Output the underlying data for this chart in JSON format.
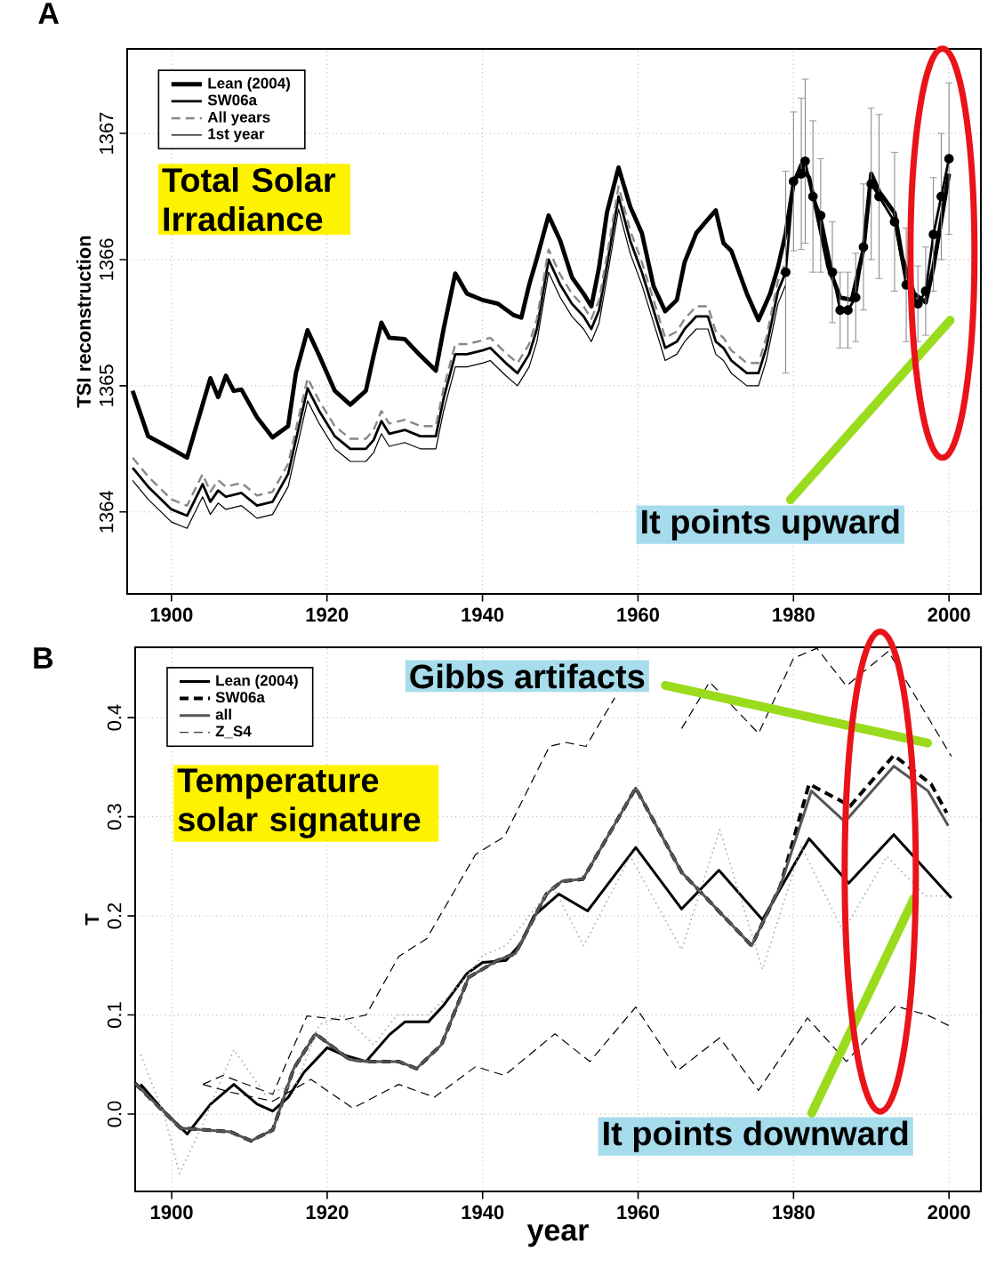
{
  "chart_data": [
    {
      "type": "line",
      "title": "A",
      "ylabel": "TSI reconstruction",
      "xlim": [
        1894.3,
        2004.1
      ],
      "ylim": [
        1363.35,
        1367.67
      ],
      "xticks": [
        1900,
        1920,
        1940,
        1960,
        1980,
        2000
      ],
      "yticks": [
        1364,
        1365,
        1366,
        1367
      ],
      "grid": true,
      "legend": "top left",
      "annotations": [
        "Total Solar Irradiance",
        "It points upward"
      ],
      "series": [
        {
          "name": "Lean (2004)",
          "color": "#000000",
          "line_style": "solid",
          "x": [
            1895,
            1897,
            1900,
            1902,
            1904,
            1905,
            1906,
            1907,
            1908,
            1909,
            1911,
            1913,
            1915,
            1916,
            1917.5,
            1919,
            1921,
            1923,
            1925,
            1926,
            1927,
            1928,
            1930,
            1932,
            1934,
            1935,
            1936.5,
            1938,
            1940,
            1942,
            1944,
            1945,
            1946,
            1947,
            1948.5,
            1950,
            1951.5,
            1953,
            1954,
            1955,
            1956,
            1957.5,
            1959,
            1960.5,
            1962,
            1963.5,
            1965,
            1966,
            1967.5,
            1969,
            1970,
            1971,
            1972,
            1974,
            1975.5,
            1977,
            1978,
            1979,
            1980,
            1981,
            1982,
            1983,
            1984.5,
            1986,
            1987.5,
            1989,
            1990,
            1991,
            1993,
            1994,
            1995.5,
            1997,
            1998,
            2000
          ],
          "values": [
            1364.96,
            1364.6,
            1364.5,
            1364.43,
            1364.85,
            1365.06,
            1364.91,
            1365.08,
            1364.96,
            1364.97,
            1364.75,
            1364.59,
            1364.68,
            1365.1,
            1365.44,
            1365.24,
            1364.96,
            1364.85,
            1364.96,
            1365.24,
            1365.5,
            1365.38,
            1365.37,
            1365.24,
            1365.12,
            1365.45,
            1365.89,
            1365.73,
            1365.68,
            1365.65,
            1365.56,
            1365.54,
            1365.8,
            1366.01,
            1366.35,
            1366.15,
            1365.86,
            1365.73,
            1365.63,
            1365.94,
            1366.37,
            1366.73,
            1366.42,
            1366.21,
            1365.79,
            1365.59,
            1365.68,
            1365.98,
            1366.21,
            1366.32,
            1366.39,
            1366.13,
            1366.07,
            1365.73,
            1365.52,
            1365.73,
            1365.94,
            1366.21,
            1366.6,
            1366.75,
            1366.65,
            1366.38,
            1365.94,
            1365.7,
            1365.68,
            1366.08,
            1366.68,
            1366.54,
            1366.37,
            1366.01,
            1365.73,
            1365.66,
            1365.94,
            1366.68
          ]
        },
        {
          "name": "SW06a",
          "color": "#000000",
          "line_style": "solid",
          "x": [
            1895,
            1897,
            1900,
            1902,
            1904,
            1905,
            1906,
            1907,
            1909,
            1911,
            1913,
            1915,
            1917.5,
            1919,
            1921,
            1923,
            1925,
            1926,
            1927,
            1928,
            1930,
            1932,
            1934,
            1935,
            1936.5,
            1938,
            1940,
            1941,
            1943,
            1944.5,
            1946,
            1947,
            1948.5,
            1950,
            1951.5,
            1953,
            1954,
            1955,
            1956,
            1957.5,
            1959,
            1960.5,
            1962,
            1963.5,
            1965,
            1966,
            1967.5,
            1969,
            1970,
            1971,
            1972,
            1974,
            1975.5,
            1976.5,
            1978,
            1979,
            1980,
            1981,
            1981.5,
            1982.5,
            1983.5,
            1985,
            1986,
            1987,
            1988,
            1989,
            1990,
            1991,
            1993,
            1994.5,
            1996,
            1997,
            1998,
            1999,
            2000
          ],
          "values": [
            1364.35,
            1364.2,
            1364.02,
            1363.97,
            1364.22,
            1364.08,
            1364.17,
            1364.12,
            1364.15,
            1364.05,
            1364.08,
            1364.3,
            1364.98,
            1364.8,
            1364.6,
            1364.5,
            1364.5,
            1364.57,
            1364.72,
            1364.62,
            1364.65,
            1364.6,
            1364.6,
            1364.9,
            1365.25,
            1365.25,
            1365.28,
            1365.3,
            1365.18,
            1365.1,
            1365.25,
            1365.45,
            1366.0,
            1365.8,
            1365.65,
            1365.55,
            1365.45,
            1365.6,
            1365.95,
            1366.5,
            1366.15,
            1365.9,
            1365.6,
            1365.3,
            1365.35,
            1365.45,
            1365.55,
            1365.55,
            1365.35,
            1365.3,
            1365.2,
            1365.1,
            1365.1,
            1365.3,
            1365.75,
            1365.9,
            1366.62,
            1366.68,
            1366.78,
            1366.5,
            1366.35,
            1365.9,
            1365.6,
            1365.6,
            1365.7,
            1366.1,
            1366.6,
            1366.5,
            1366.3,
            1365.8,
            1365.65,
            1365.75,
            1366.2,
            1366.5,
            1366.8
          ]
        },
        {
          "name": "All years",
          "color": "#888888",
          "line_style": "dashed",
          "x": [
            1895,
            1897,
            1900,
            1902,
            1904,
            1905,
            1906,
            1907,
            1909,
            1911,
            1913,
            1915,
            1917.5,
            1919,
            1921,
            1923,
            1925,
            1926,
            1927,
            1928,
            1930,
            1932,
            1934,
            1935,
            1936.5,
            1938,
            1940,
            1941,
            1943,
            1944.5,
            1946,
            1947,
            1948.5,
            1950,
            1951.5,
            1953,
            1954,
            1955,
            1956,
            1957.5,
            1959,
            1960.5,
            1962,
            1963.5,
            1965,
            1966,
            1967.5,
            1969,
            1970,
            1971,
            1972,
            1974,
            1975.5,
            1976.5,
            1978,
            1979
          ],
          "values": [
            1364.43,
            1364.28,
            1364.1,
            1364.05,
            1364.3,
            1364.16,
            1364.25,
            1364.2,
            1364.23,
            1364.13,
            1364.16,
            1364.38,
            1365.06,
            1364.88,
            1364.68,
            1364.58,
            1364.58,
            1364.65,
            1364.8,
            1364.7,
            1364.73,
            1364.68,
            1364.68,
            1364.98,
            1365.33,
            1365.33,
            1365.36,
            1365.38,
            1365.26,
            1365.18,
            1365.33,
            1365.53,
            1366.08,
            1365.88,
            1365.73,
            1365.63,
            1365.53,
            1365.68,
            1366.03,
            1366.58,
            1366.23,
            1365.98,
            1365.68,
            1365.38,
            1365.43,
            1365.53,
            1365.63,
            1365.63,
            1365.43,
            1365.38,
            1365.28,
            1365.18,
            1365.18,
            1365.38,
            1365.83,
            1365.98
          ]
        },
        {
          "name": "1st year",
          "color": "#000000",
          "line_style": "solid",
          "x": [
            1895,
            1897,
            1900,
            1902,
            1904,
            1905,
            1906,
            1907,
            1909,
            1911,
            1913,
            1915,
            1917.5,
            1919,
            1921,
            1923,
            1925,
            1926,
            1927,
            1928,
            1930,
            1932,
            1934,
            1935,
            1936.5,
            1938,
            1940,
            1941,
            1943,
            1944.5,
            1946,
            1947,
            1948.5,
            1950,
            1951.5,
            1953,
            1954,
            1955,
            1956,
            1957.5,
            1959,
            1960.5,
            1962,
            1963.5,
            1965,
            1966,
            1967.5,
            1969,
            1970,
            1971,
            1972,
            1974,
            1975.5,
            1976.5,
            1978,
            1979
          ],
          "values": [
            1364.25,
            1364.1,
            1363.92,
            1363.87,
            1364.12,
            1363.98,
            1364.07,
            1364.02,
            1364.05,
            1363.95,
            1363.98,
            1364.2,
            1364.88,
            1364.7,
            1364.5,
            1364.4,
            1364.4,
            1364.47,
            1364.62,
            1364.52,
            1364.55,
            1364.5,
            1364.5,
            1364.8,
            1365.15,
            1365.15,
            1365.18,
            1365.2,
            1365.08,
            1365.0,
            1365.15,
            1365.35,
            1365.9,
            1365.7,
            1365.55,
            1365.45,
            1365.35,
            1365.5,
            1365.85,
            1366.4,
            1366.05,
            1365.8,
            1365.5,
            1365.2,
            1365.25,
            1365.35,
            1365.45,
            1365.45,
            1365.25,
            1365.2,
            1365.1,
            1365.0,
            1365.0,
            1365.2,
            1365.65,
            1365.8
          ]
        },
        {
          "type": "scatter",
          "marker": "circle",
          "color": "#000000",
          "x": [
            1979,
            1980,
            1981,
            1981.5,
            1982.5,
            1983.5,
            1985,
            1986,
            1987,
            1988,
            1989,
            1990,
            1991,
            1993,
            1994.5,
            1996,
            1997,
            1998,
            1999,
            2000
          ],
          "values": [
            1365.9,
            1366.62,
            1366.68,
            1366.78,
            1366.5,
            1366.35,
            1365.9,
            1365.6,
            1365.6,
            1365.7,
            1366.1,
            1366.6,
            1366.5,
            1366.3,
            1365.8,
            1365.65,
            1365.75,
            1366.2,
            1366.5,
            1366.8
          ],
          "errors": [
            0.8,
            0.55,
            0.6,
            0.65,
            0.6,
            0.45,
            0.4,
            0.3,
            0.3,
            0.35,
            0.5,
            0.6,
            0.65,
            0.55,
            0.45,
            0.3,
            0.35,
            0.45,
            0.5,
            0.6
          ]
        }
      ]
    },
    {
      "type": "line",
      "title": "B",
      "xlabel": "year",
      "ylabel": "T",
      "xlim": [
        1895.3,
        2004.1
      ],
      "ylim": [
        -0.078,
        0.471
      ],
      "xticks": [
        1900,
        1920,
        1940,
        1960,
        1980,
        2000
      ],
      "yticks": [
        {
          "value": 0,
          "label": "0.0"
        },
        0.1,
        0.2,
        0.3,
        0.4
      ],
      "grid": true,
      "legend": "top left",
      "annotations": [
        "Gibbs artifacts",
        "Temperature solar signature",
        "It points downward"
      ],
      "series": [
        {
          "name": "Lean (2004)",
          "color": "#000000",
          "line_style": "solid",
          "x": [
            1896,
            1899,
            1902,
            1905,
            1908,
            1911,
            1913,
            1915,
            1917,
            1920,
            1922,
            1925,
            1928,
            1930,
            1933,
            1935,
            1938,
            1940,
            1943,
            1945,
            1946.6,
            1949.8,
            1953.5,
            1959.7,
            1965.6,
            1970.4,
            1976,
            1982,
            1987.1,
            1992.9,
            2000.3
          ],
          "values": [
            0.03,
            0.003,
            -0.02,
            0.01,
            0.03,
            0.01,
            0.003,
            0.017,
            0.042,
            0.067,
            0.06,
            0.053,
            0.08,
            0.093,
            0.093,
            0.11,
            0.142,
            0.153,
            0.155,
            0.173,
            0.2,
            0.222,
            0.205,
            0.269,
            0.207,
            0.246,
            0.196,
            0.278,
            0.233,
            0.282,
            0.218
          ]
        },
        {
          "name": "SW06a",
          "color": "#000000",
          "line_style": "dashed",
          "x": [
            1895.3,
            1901.1,
            1907.6,
            1910.2,
            1913,
            1915.7,
            1918.5,
            1922.9,
            1925.6,
            1929.2,
            1931.5,
            1934.7,
            1938.2,
            1941.9,
            1944.2,
            1948.2,
            1950.2,
            1952.9,
            1959.7,
            1965.6,
            1968.3,
            1974.6,
            1978.3,
            1982,
            1987.3,
            1992.9,
            1997.7,
            1999.7
          ],
          "values": [
            0.031,
            -0.014,
            -0.018,
            -0.027,
            -0.016,
            0.046,
            0.081,
            0.055,
            0.053,
            0.053,
            0.046,
            0.07,
            0.138,
            0.155,
            0.162,
            0.222,
            0.235,
            0.237,
            0.329,
            0.244,
            0.222,
            0.17,
            0.23,
            0.333,
            0.311,
            0.362,
            0.333,
            0.304
          ]
        },
        {
          "name": "all",
          "color": "#555555",
          "line_style": "solid",
          "x": [
            1895.3,
            1901.1,
            1907.6,
            1910.2,
            1913,
            1915.7,
            1918.5,
            1922.9,
            1925.6,
            1929.2,
            1931.5,
            1934.7,
            1938.2,
            1941.9,
            1944.2,
            1948.2,
            1950.2,
            1952.9,
            1959.7,
            1965.6,
            1968.3,
            1974.6,
            1978.3,
            1982.3,
            1986.6,
            1992.9,
            1997.3,
            1999.9
          ],
          "values": [
            0.031,
            -0.014,
            -0.018,
            -0.027,
            -0.016,
            0.046,
            0.081,
            0.055,
            0.053,
            0.053,
            0.046,
            0.07,
            0.138,
            0.155,
            0.162,
            0.222,
            0.235,
            0.237,
            0.329,
            0.244,
            0.222,
            0.17,
            0.23,
            0.326,
            0.295,
            0.351,
            0.326,
            0.291
          ]
        },
        {
          "name": "Z_S4",
          "color": "#000000",
          "line_style": "dashed",
          "x": [
            1904,
            1906.6,
            1913,
            1917.4,
            1922,
            1925,
            1929.2,
            1932.8,
            1939.1,
            1942.8,
            1948.6,
            1950.7,
            1953.3,
            1957,
            1960,
            1965.6,
            1969.2,
            1975.5,
            1980,
            1983,
            1986.8,
            1992.2,
            2000.3
          ],
          "values": [
            0.03,
            0.039,
            0.02,
            0.099,
            0.095,
            0.1,
            0.159,
            0.177,
            0.262,
            0.28,
            0.371,
            0.375,
            0.371,
            0.42,
            null,
            0.389,
            0.436,
            0.384,
            0.46,
            0.47,
            0.432,
            0.467,
            0.361
          ]
        },
        {
          "color": "#000000",
          "line_style": "dashed",
          "x": [
            1904,
            1907.6,
            1913,
            1917.9,
            1923.3,
            1929.2,
            1933.8,
            1939.1,
            1942.8,
            1949.3,
            1953.8,
            1959.7,
            1965.1,
            1970.5,
            1975.5,
            1981.8,
            1986.8,
            1993.1,
            1997.2,
            2000.3
          ],
          "values": [
            0.03,
            0.022,
            0.013,
            0.035,
            0.006,
            0.03,
            0.017,
            0.048,
            0.039,
            0.081,
            0.053,
            0.108,
            0.044,
            0.077,
            0.024,
            0.097,
            0.053,
            0.109,
            0.1,
            0.088
          ]
        },
        {
          "color": "#aaaaaa",
          "line_style": "dotted",
          "x": [
            1896,
            1899,
            1901,
            1904,
            1908,
            1912,
            1916,
            1919,
            1922,
            1926,
            1929,
            1933,
            1937,
            1940,
            1943,
            1946,
            1949,
            1953,
            1959,
            1965.6,
            1970.5,
            1976,
            1981,
            1986.4,
            1992,
            1997,
            2000
          ],
          "values": [
            0.06,
            0.0,
            -0.06,
            -0.01,
            0.065,
            0.02,
            0.03,
            0.09,
            0.1,
            0.07,
            0.1,
            0.1,
            0.13,
            0.16,
            0.17,
            0.2,
            0.23,
            0.17,
            0.26,
            0.166,
            0.287,
            0.146,
            0.27,
            0.184,
            0.26,
            0.22,
            0.22
          ]
        }
      ]
    }
  ]
}
